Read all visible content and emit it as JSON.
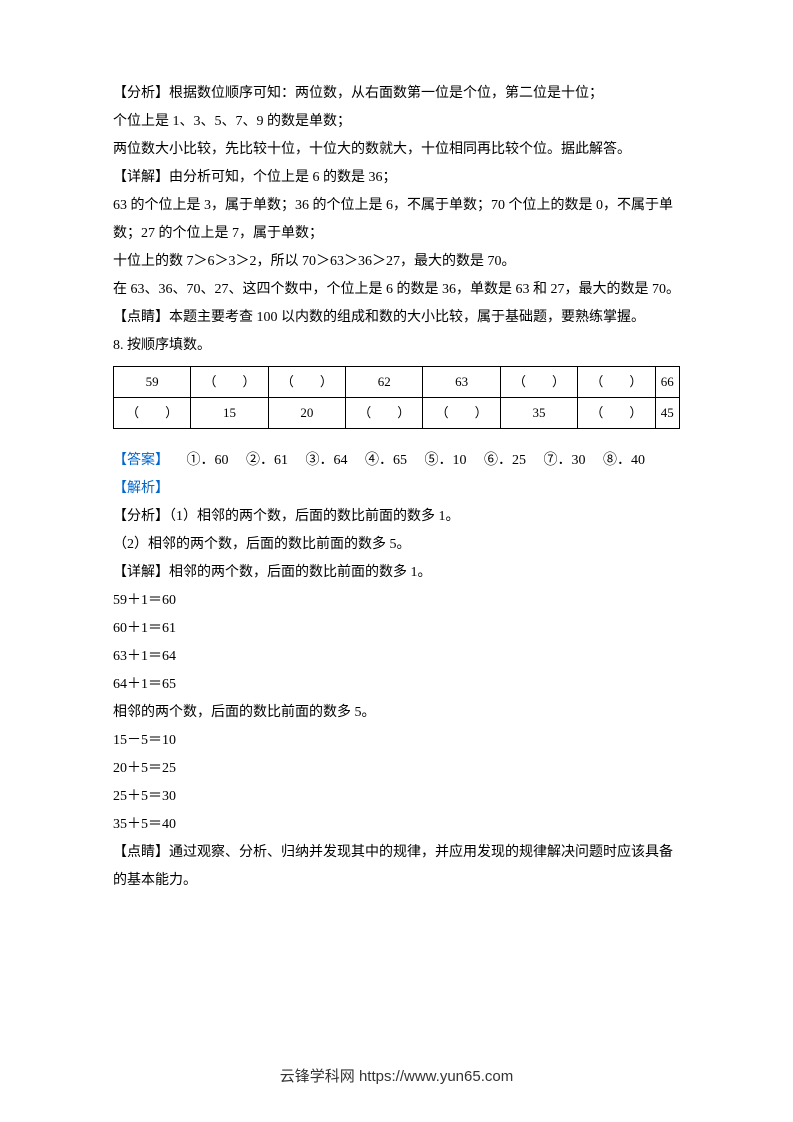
{
  "analysis_block": {
    "line1": "【分析】根据数位顺序可知：两位数，从右面数第一位是个位，第二位是十位；",
    "line2": "个位上是 1、3、5、7、9 的数是单数；",
    "line3": "两位数大小比较，先比较十位，十位大的数就大，十位相同再比较个位。据此解答。",
    "line4": "【详解】由分析可知，个位上是 6 的数是 36；",
    "line5": "63 的个位上是 3，属于单数；36 的个位上是 6，不属于单数；70 个位上的数是 0，不属于单数；27 的个位上是 7，属于单数；",
    "line6": "十位上的数 7＞6＞3＞2，所以 70＞63＞36＞27，最大的数是 70。",
    "line7": "在 63、36、70、27、这四个数中，个位上是 6 的数是 36，单数是 63 和 27，最大的数是 70。",
    "line8": "【点睛】本题主要考查 100 以内数的组成和数的大小比较，属于基础题，要熟练掌握。"
  },
  "question8": {
    "title": "8. 按顺序填数。"
  },
  "table": {
    "row1": [
      "59",
      "（　　）",
      "（　　）",
      "62",
      "63",
      "（　　）",
      "（　　）",
      "66"
    ],
    "row2": [
      "（　　）",
      "15",
      "20",
      "（　　）",
      "（　　）",
      "35",
      "（　　）",
      "45"
    ]
  },
  "answer": {
    "label": "【答案】",
    "items": "     ①．60     ②．61     ③．64     ④．65     ⑤．10     ⑥．25     ⑦．30     ⑧．40"
  },
  "explain": {
    "label": "【解析】",
    "line1": "【分析】（1）相邻的两个数，后面的数比前面的数多 1。",
    "line2": "（2）相邻的两个数，后面的数比前面的数多 5。",
    "line3": "【详解】相邻的两个数，后面的数比前面的数多 1。",
    "calc1": "59＋1＝60",
    "calc2": "60＋1＝61",
    "calc3": "63＋1＝64",
    "calc4": "64＋1＝65",
    "line4": "相邻的两个数，后面的数比前面的数多 5。",
    "calc5": "15－5＝10",
    "calc6": "20＋5＝25",
    "calc7": "25＋5＝30",
    "calc8": "35＋5＝40",
    "line5": "【点睛】通过观察、分析、归纳并发现其中的规律，并应用发现的规律解决问题时应该具备的基本能力。"
  },
  "footer": {
    "text": "云锋学科网 https://www.yun65.com"
  }
}
